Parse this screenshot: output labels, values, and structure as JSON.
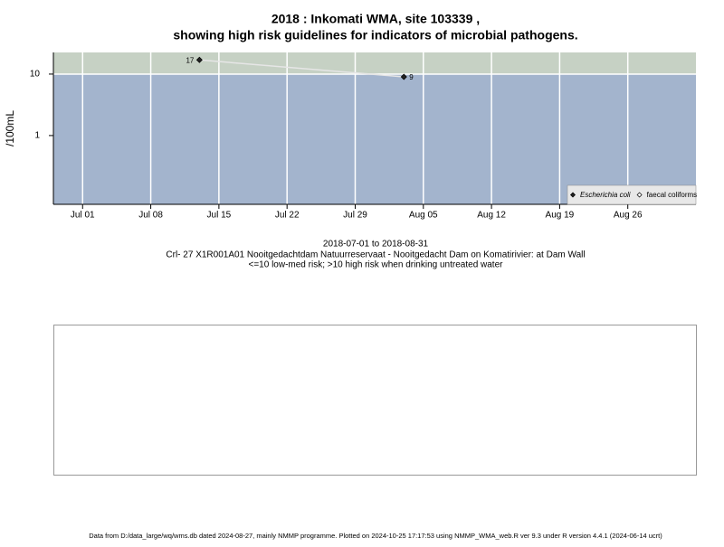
{
  "chart_data": {
    "type": "line",
    "title": [
      "2018 : Inkomati WMA, site 103339 ,",
      "showing high risk guidelines for indicators of microbial pathogens."
    ],
    "y_label": "/100mL",
    "x": [
      "2018-07-13",
      "2018-08-03"
    ],
    "series": [
      {
        "name": "Escherichia coli",
        "color": "#222222",
        "values": [
          17,
          9
        ]
      },
      {
        "name": "faecal coliforms",
        "color": "#ffffff",
        "values": [
          null,
          null
        ]
      }
    ],
    "line_color": "#e6e6e6",
    "xlim": [
      "2018-06-28",
      "2018-09-02"
    ],
    "xticks": [
      {
        "value": "2018-07-01",
        "label": "Jul 01"
      },
      {
        "value": "2018-07-08",
        "label": "Jul 08"
      },
      {
        "value": "2018-07-15",
        "label": "Jul 15"
      },
      {
        "value": "2018-07-22",
        "label": "Jul 22"
      },
      {
        "value": "2018-07-29",
        "label": "Jul 29"
      },
      {
        "value": "2018-08-05",
        "label": "Aug 05"
      },
      {
        "value": "2018-08-12",
        "label": "Aug 12"
      },
      {
        "value": "2018-08-19",
        "label": "Aug 19"
      },
      {
        "value": "2018-08-26",
        "label": "Aug 26"
      }
    ],
    "ylim": [
      0.076,
      22.5
    ],
    "yticks": [
      1,
      10
    ],
    "log_y": true,
    "grid": true,
    "threshold": 10,
    "high_color": "#c6d1c4",
    "low_color": "#a3b4cd",
    "legend": "bottom-right",
    "caption": [
      "2018-07-01 to 2018-08-31",
      "Crl- 27 X1R001A01 Nooitgedachtdam Natuurreservaat - Nooitgedacht Dam on Komatirivier: at Dam Wall",
      "<=10 low-med risk; >10 high risk when drinking untreated water"
    ],
    "footer": "Data from D:/data_large/wq/wms.db dated 2024-08-27, mainly NMMP programme. Plotted on 2024-10-25 17:17:53 using NMMP_WMA_web.R ver 9.3 under R version 4.4.1 (2024-06-14 ucrt)"
  }
}
